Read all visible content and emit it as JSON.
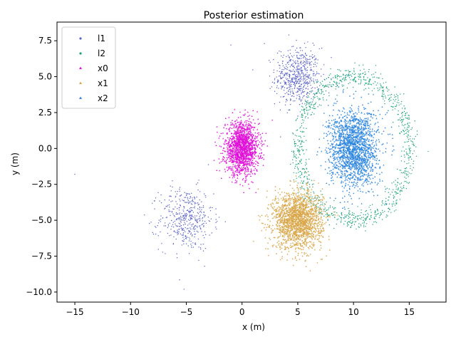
{
  "chart_data": {
    "type": "scatter",
    "title": "Posterior estimation",
    "xlabel": "x (m)",
    "ylabel": "y (m)",
    "xlim": [
      -16.6,
      18.3
    ],
    "ylim": [
      -10.7,
      8.8
    ],
    "xticks": [
      -15,
      -10,
      -5,
      0,
      5,
      10,
      15
    ],
    "xtick_labels": [
      "−15",
      "−10",
      "−5",
      "0",
      "5",
      "10",
      "15"
    ],
    "yticks": [
      -10.0,
      -7.5,
      -5.0,
      -2.5,
      0.0,
      2.5,
      5.0,
      7.5
    ],
    "ytick_labels": [
      "−10.0",
      "−7.5",
      "−5.0",
      "−2.5",
      "0.0",
      "2.5",
      "5.0",
      "7.5"
    ],
    "grid": false,
    "legend_position": "top-left",
    "series": [
      {
        "name": "l1",
        "color": "#5a64c8",
        "marker": "dot",
        "clusters": [
          {
            "shape": "blob",
            "cx": 5,
            "cy": 5,
            "sx": 1.0,
            "sy": 1.0,
            "n": 600
          },
          {
            "shape": "blob",
            "cx": -5,
            "cy": -4.9,
            "sx": 1.2,
            "sy": 1.1,
            "n": 450
          },
          {
            "shape": "outliers",
            "points": [
              [
                -15,
                -1.8
              ],
              [
                4.2,
                7.9
              ],
              [
                -5.2,
                -9.8
              ],
              [
                -1,
                7.2
              ],
              [
                2,
                7.3
              ]
            ]
          }
        ]
      },
      {
        "name": "l2",
        "color": "#1aa378",
        "marker": "dot",
        "clusters": [
          {
            "shape": "ring",
            "cx": 10,
            "cy": 0,
            "r": 5.0,
            "spread": 0.35,
            "n": 1000
          },
          {
            "shape": "outliers",
            "points": [
              [
                16.7,
                -0.2
              ]
            ]
          }
        ]
      },
      {
        "name": "x0",
        "color": "#e012d8",
        "marker": "arrow",
        "clusters": [
          {
            "shape": "blob",
            "cx": 0,
            "cy": 0,
            "sx": 0.75,
            "sy": 0.9,
            "n": 1500
          }
        ]
      },
      {
        "name": "x1",
        "color": "#d9a74a",
        "marker": "arrow",
        "clusters": [
          {
            "shape": "blob",
            "cx": 5,
            "cy": -5,
            "sx": 1.1,
            "sy": 1.0,
            "n": 1800
          }
        ]
      },
      {
        "name": "x2",
        "color": "#2d86e0",
        "marker": "arrow",
        "clusters": [
          {
            "shape": "blob",
            "cx": 10,
            "cy": 0,
            "sx": 1.1,
            "sy": 1.35,
            "n": 1800
          }
        ]
      }
    ]
  }
}
